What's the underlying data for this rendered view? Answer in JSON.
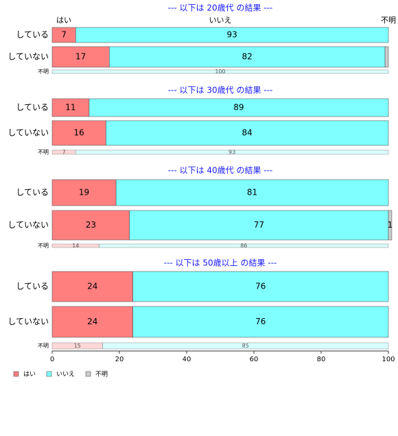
{
  "chart_data": [
    {
      "type": "bar",
      "orientation": "horizontal",
      "stacked": true,
      "title": "--- 以下は 20歳代 の結果 ---",
      "categories": [
        "している",
        "していない",
        "不明"
      ],
      "xlim": [
        0,
        100
      ],
      "series": [
        {
          "name": "はい",
          "color": "#ff7f7f",
          "values": [
            7,
            17,
            0
          ],
          "value_labels": [
            "7",
            "17",
            null
          ]
        },
        {
          "name": "いいえ",
          "color": "#7fffff",
          "values": [
            93,
            82,
            100
          ],
          "value_labels": [
            "93",
            "82",
            "100"
          ]
        },
        {
          "name": "不明",
          "color": "#cccccc",
          "values": [
            0,
            1,
            0
          ],
          "value_labels": [
            null,
            null,
            null
          ]
        }
      ]
    },
    {
      "type": "bar",
      "orientation": "horizontal",
      "stacked": true,
      "title": "--- 以下は 30歳代 の結果 ---",
      "categories": [
        "している",
        "していない",
        "不明"
      ],
      "xlim": [
        0,
        100
      ],
      "series": [
        {
          "name": "はい",
          "color": "#ff7f7f",
          "values": [
            11,
            16,
            7
          ],
          "value_labels": [
            "11",
            "16",
            "7"
          ]
        },
        {
          "name": "いいえ",
          "color": "#7fffff",
          "values": [
            89,
            84,
            93
          ],
          "value_labels": [
            "89",
            "84",
            "93"
          ]
        },
        {
          "name": "不明",
          "color": "#cccccc",
          "values": [
            0,
            0,
            0
          ],
          "value_labels": [
            null,
            null,
            null
          ]
        }
      ]
    },
    {
      "type": "bar",
      "orientation": "horizontal",
      "stacked": true,
      "title": "--- 以下は 40歳代 の結果 ---",
      "categories": [
        "している",
        "していない",
        "不明"
      ],
      "xlim": [
        0,
        100
      ],
      "series": [
        {
          "name": "はい",
          "color": "#ff7f7f",
          "values": [
            19,
            23,
            14
          ],
          "value_labels": [
            "19",
            "23",
            "14"
          ]
        },
        {
          "name": "いいえ",
          "color": "#7fffff",
          "values": [
            81,
            77,
            86
          ],
          "value_labels": [
            "81",
            "77",
            "86"
          ]
        },
        {
          "name": "不明",
          "color": "#cccccc",
          "values": [
            0,
            1,
            0
          ],
          "value_labels": [
            null,
            "1",
            null
          ]
        }
      ]
    },
    {
      "type": "bar",
      "orientation": "horizontal",
      "stacked": true,
      "title": "--- 以下は 50歳以上 の結果 ---",
      "categories": [
        "している",
        "していない",
        "不明"
      ],
      "xlim": [
        0,
        100
      ],
      "xticks": [
        0,
        20,
        40,
        60,
        80,
        100
      ],
      "legend": "bottom-left",
      "series": [
        {
          "name": "はい",
          "color": "#ff7f7f",
          "values": [
            24,
            24,
            15
          ],
          "value_labels": [
            "24",
            "24",
            "15"
          ]
        },
        {
          "name": "いいえ",
          "color": "#7fffff",
          "values": [
            76,
            76,
            85
          ],
          "value_labels": [
            "76",
            "76",
            "85"
          ]
        },
        {
          "name": "不明",
          "color": "#cccccc",
          "values": [
            0,
            0,
            0
          ],
          "value_labels": [
            null,
            null,
            null
          ]
        }
      ]
    }
  ]
}
